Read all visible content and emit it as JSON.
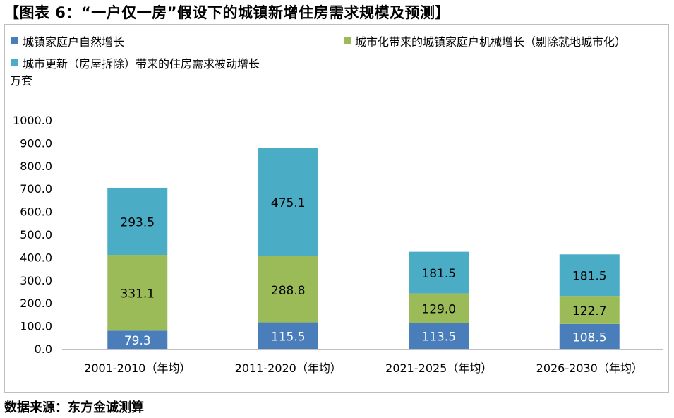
{
  "title": "【图表 6：“一户仅一房”假设下的城镇新增住房需求规模及预测】",
  "unit": "万套",
  "source": "数据来源：东方金诚测算",
  "colors": {
    "natural": "#4a7ebb",
    "urbanization": "#9bbb59",
    "renewal": "#4bacc6"
  },
  "chart_data": {
    "type": "bar",
    "stacked": true,
    "title": "“一户仅一房”假设下的城镇新增住房需求规模及预测",
    "ylabel": "万套",
    "xlabel": "",
    "ylim": [
      0,
      1000
    ],
    "yticks": [
      "0.0",
      "100.0",
      "200.0",
      "300.0",
      "400.0",
      "500.0",
      "600.0",
      "700.0",
      "800.0",
      "900.0",
      "1000.0"
    ],
    "grid": false,
    "legend": "top",
    "categories": [
      "2001-2010（年均）",
      "2011-2020（年均）",
      "2021-2025（年均）",
      "2026-2030（年均）"
    ],
    "series": [
      {
        "name": "城镇家庭户自然增长",
        "values": [
          79.3,
          115.5,
          113.5,
          108.5
        ],
        "labels": [
          "79.3",
          "115.5",
          "113.5",
          "108.5"
        ]
      },
      {
        "name": "城市化带来的城镇家庭户机械增长（剔除就地城市化）",
        "values": [
          331.1,
          288.8,
          129.0,
          122.7
        ],
        "labels": [
          "331.1",
          "288.8",
          "129.0",
          "122.7"
        ]
      },
      {
        "name": "城市更新（房屋拆除）带来的住房需求被动增长",
        "values": [
          293.5,
          475.1,
          181.5,
          181.5
        ],
        "labels": [
          "293.5",
          "475.1",
          "181.5",
          "181.5"
        ]
      }
    ]
  }
}
